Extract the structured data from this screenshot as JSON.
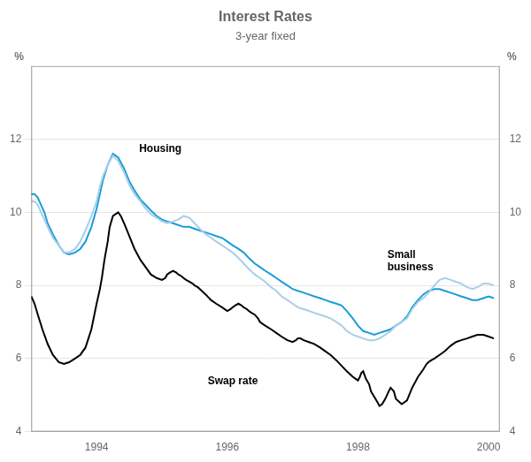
{
  "chart_data": {
    "type": "line",
    "title": "Interest Rates",
    "subtitle": "3-year fixed",
    "ylabel": "%",
    "y2label": "%",
    "xlim": [
      1993.0,
      2000.17
    ],
    "xticks": [
      1994,
      1996,
      1998,
      2000
    ],
    "ylim": [
      4,
      14
    ],
    "yticks": [
      4,
      6,
      8,
      10,
      12
    ],
    "y2lim": [
      4,
      14
    ],
    "y2ticks": [
      4,
      6,
      8,
      10,
      12
    ],
    "grid": true,
    "series": [
      {
        "color": "#a8cfe8",
        "x": [
          1993.0,
          1993.05,
          1993.1,
          1993.15,
          1993.2,
          1993.25,
          1993.33,
          1993.42,
          1993.5,
          1993.58,
          1993.67,
          1993.75,
          1993.83,
          1993.92,
          1994.0,
          1994.05,
          1994.1,
          1994.17,
          1994.25,
          1994.33,
          1994.42,
          1994.5,
          1994.58,
          1994.67,
          1994.75,
          1994.83,
          1994.92,
          1995.0,
          1995.08,
          1995.17,
          1995.25,
          1995.33,
          1995.42,
          1995.5,
          1995.58,
          1995.67,
          1995.75,
          1995.83,
          1995.92,
          1996.0,
          1996.08,
          1996.17,
          1996.25,
          1996.33,
          1996.42,
          1996.5,
          1996.58,
          1996.67,
          1996.75,
          1996.83,
          1996.92,
          1997.0,
          1997.08,
          1997.17,
          1997.25,
          1997.33,
          1997.42,
          1997.5,
          1997.58,
          1997.67,
          1997.75,
          1997.83,
          1997.92,
          1998.0,
          1998.08,
          1998.17,
          1998.25,
          1998.33,
          1998.42,
          1998.5,
          1998.58,
          1998.67,
          1998.75,
          1998.83,
          1998.92,
          1999.0,
          1999.08,
          1999.17,
          1999.25,
          1999.33,
          1999.42,
          1999.5,
          1999.58,
          1999.67,
          1999.75,
          1999.83,
          1999.92,
          2000.0,
          2000.08
        ],
        "values": [
          10.3,
          10.3,
          10.2,
          10.0,
          9.8,
          9.6,
          9.3,
          9.1,
          8.9,
          8.9,
          9.0,
          9.2,
          9.5,
          9.9,
          10.3,
          10.7,
          11.0,
          11.3,
          11.55,
          11.4,
          11.1,
          10.75,
          10.5,
          10.3,
          10.1,
          9.95,
          9.85,
          9.75,
          9.7,
          9.75,
          9.8,
          9.9,
          9.85,
          9.7,
          9.55,
          9.4,
          9.3,
          9.2,
          9.1,
          9.0,
          8.9,
          8.75,
          8.6,
          8.45,
          8.3,
          8.2,
          8.1,
          7.95,
          7.85,
          7.7,
          7.6,
          7.5,
          7.4,
          7.35,
          7.3,
          7.25,
          7.2,
          7.15,
          7.1,
          7.0,
          6.9,
          6.75,
          6.65,
          6.6,
          6.55,
          6.5,
          6.5,
          6.55,
          6.65,
          6.75,
          6.9,
          7.0,
          7.1,
          7.35,
          7.55,
          7.65,
          7.8,
          8.0,
          8.15,
          8.2,
          8.15,
          8.1,
          8.05,
          7.95,
          7.9,
          7.95,
          8.05,
          8.05,
          8.0
        ]
      },
      {
        "color": "#1a9cd8",
        "x": [
          1993.0,
          1993.05,
          1993.1,
          1993.15,
          1993.2,
          1993.25,
          1993.33,
          1993.42,
          1993.5,
          1993.58,
          1993.67,
          1993.75,
          1993.83,
          1993.92,
          1994.0,
          1994.05,
          1994.1,
          1994.17,
          1994.25,
          1994.33,
          1994.42,
          1994.5,
          1994.58,
          1994.67,
          1994.75,
          1994.83,
          1994.92,
          1995.0,
          1995.08,
          1995.17,
          1995.25,
          1995.33,
          1995.42,
          1995.5,
          1995.58,
          1995.67,
          1995.75,
          1995.83,
          1995.92,
          1996.0,
          1996.08,
          1996.17,
          1996.25,
          1996.33,
          1996.42,
          1996.5,
          1996.58,
          1996.67,
          1996.75,
          1996.83,
          1996.92,
          1997.0,
          1997.08,
          1997.17,
          1997.25,
          1997.33,
          1997.42,
          1997.5,
          1997.58,
          1997.67,
          1997.75,
          1997.83,
          1997.92,
          1998.0,
          1998.08,
          1998.17,
          1998.25,
          1998.33,
          1998.42,
          1998.5,
          1998.58,
          1998.67,
          1998.75,
          1998.83,
          1998.92,
          1999.0,
          1999.08,
          1999.17,
          1999.25,
          1999.33,
          1999.42,
          1999.5,
          1999.58,
          1999.67,
          1999.75,
          1999.83,
          1999.92,
          2000.0,
          2000.08
        ],
        "values": [
          10.5,
          10.5,
          10.4,
          10.2,
          10.0,
          9.7,
          9.4,
          9.1,
          8.9,
          8.85,
          8.9,
          9.0,
          9.2,
          9.6,
          10.1,
          10.5,
          10.9,
          11.3,
          11.6,
          11.5,
          11.2,
          10.85,
          10.6,
          10.35,
          10.2,
          10.05,
          9.9,
          9.8,
          9.75,
          9.7,
          9.65,
          9.6,
          9.6,
          9.55,
          9.5,
          9.45,
          9.4,
          9.35,
          9.3,
          9.2,
          9.1,
          9.0,
          8.9,
          8.75,
          8.6,
          8.5,
          8.4,
          8.3,
          8.2,
          8.1,
          8.0,
          7.9,
          7.85,
          7.8,
          7.75,
          7.7,
          7.65,
          7.6,
          7.55,
          7.5,
          7.45,
          7.3,
          7.1,
          6.9,
          6.75,
          6.7,
          6.65,
          6.7,
          6.75,
          6.8,
          6.9,
          7.0,
          7.15,
          7.4,
          7.6,
          7.75,
          7.85,
          7.9,
          7.9,
          7.85,
          7.8,
          7.75,
          7.7,
          7.65,
          7.6,
          7.6,
          7.65,
          7.7,
          7.65
        ]
      },
      {
        "color": "#000000",
        "x": [
          1993.0,
          1993.05,
          1993.1,
          1993.17,
          1993.25,
          1993.33,
          1993.42,
          1993.5,
          1993.58,
          1993.67,
          1993.75,
          1993.83,
          1993.92,
          1994.0,
          1994.05,
          1994.08,
          1994.12,
          1994.17,
          1994.2,
          1994.25,
          1994.33,
          1994.37,
          1994.42,
          1994.5,
          1994.58,
          1994.67,
          1994.75,
          1994.83,
          1994.92,
          1995.0,
          1995.05,
          1995.08,
          1995.12,
          1995.17,
          1995.22,
          1995.25,
          1995.3,
          1995.33,
          1995.37,
          1995.42,
          1995.47,
          1995.5,
          1995.55,
          1995.58,
          1995.67,
          1995.75,
          1995.83,
          1995.92,
          1996.0,
          1996.05,
          1996.08,
          1996.12,
          1996.17,
          1996.22,
          1996.25,
          1996.3,
          1996.33,
          1996.37,
          1996.42,
          1996.47,
          1996.5,
          1996.58,
          1996.67,
          1996.75,
          1996.83,
          1996.92,
          1997.0,
          1997.05,
          1997.08,
          1997.12,
          1997.17,
          1997.25,
          1997.33,
          1997.42,
          1997.5,
          1997.58,
          1997.67,
          1997.75,
          1997.83,
          1997.92,
          1998.0,
          1998.03,
          1998.05,
          1998.08,
          1998.1,
          1998.12,
          1998.17,
          1998.2,
          1998.25,
          1998.3,
          1998.33,
          1998.37,
          1998.42,
          1998.47,
          1998.5,
          1998.55,
          1998.58,
          1998.67,
          1998.75,
          1998.83,
          1998.92,
          1999.0,
          1999.05,
          1999.08,
          1999.12,
          1999.17,
          1999.25,
          1999.33,
          1999.42,
          1999.5,
          1999.58,
          1999.67,
          1999.75,
          1999.83,
          1999.92,
          2000.0,
          2000.08
        ],
        "values": [
          7.7,
          7.5,
          7.2,
          6.8,
          6.4,
          6.1,
          5.9,
          5.85,
          5.9,
          6.0,
          6.1,
          6.3,
          6.8,
          7.5,
          7.9,
          8.2,
          8.7,
          9.2,
          9.6,
          9.9,
          10.0,
          9.9,
          9.7,
          9.35,
          9.0,
          8.7,
          8.5,
          8.3,
          8.2,
          8.15,
          8.2,
          8.3,
          8.35,
          8.4,
          8.35,
          8.3,
          8.25,
          8.2,
          8.15,
          8.1,
          8.05,
          8.0,
          7.95,
          7.9,
          7.75,
          7.6,
          7.5,
          7.4,
          7.3,
          7.35,
          7.4,
          7.45,
          7.5,
          7.45,
          7.4,
          7.35,
          7.3,
          7.25,
          7.2,
          7.1,
          7.0,
          6.9,
          6.8,
          6.7,
          6.6,
          6.5,
          6.45,
          6.5,
          6.55,
          6.55,
          6.5,
          6.45,
          6.4,
          6.3,
          6.2,
          6.1,
          5.95,
          5.8,
          5.65,
          5.5,
          5.4,
          5.5,
          5.6,
          5.65,
          5.55,
          5.45,
          5.3,
          5.1,
          4.95,
          4.8,
          4.7,
          4.75,
          4.9,
          5.1,
          5.2,
          5.1,
          4.9,
          4.75,
          4.85,
          5.2,
          5.5,
          5.7,
          5.85,
          5.9,
          5.95,
          6.0,
          6.1,
          6.2,
          6.35,
          6.45,
          6.5,
          6.55,
          6.6,
          6.65,
          6.65,
          6.6,
          6.55
        ]
      }
    ],
    "annotations": [
      {
        "text": "Housing",
        "x": 1994.65,
        "y": 11.65
      },
      {
        "text": "Swap rate",
        "x": 1995.7,
        "y": 5.3
      },
      {
        "text": "Small\nbusiness",
        "x": 1998.45,
        "y": 8.65
      }
    ]
  }
}
